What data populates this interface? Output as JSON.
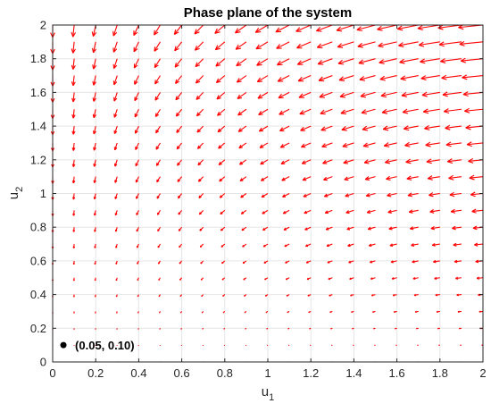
{
  "chart_data": {
    "type": "quiver",
    "title": "Phase plane of the system",
    "xlabel": "u",
    "xlabel_subscript": "1",
    "ylabel": "u",
    "ylabel_subscript": "2",
    "xlim": [
      0,
      2
    ],
    "ylim": [
      0,
      2
    ],
    "x_ticks": [
      "0",
      "0.2",
      "0.4",
      "0.6",
      "0.8",
      "1",
      "1.2",
      "1.4",
      "1.6",
      "1.8",
      "2"
    ],
    "y_ticks": [
      "0",
      "0.2",
      "0.4",
      "0.6",
      "0.8",
      "1",
      "1.2",
      "1.4",
      "1.6",
      "1.8",
      "2"
    ],
    "grid": true,
    "arrow_color": "#ff0000",
    "grid_spacing": 0.1,
    "vector_field": "du1/dt ≈ -u1·u2, du2/dt ≈ -u2·(1 - 0.4·u1); arrows on a 21×21 grid over [0,2]×[0,2]",
    "marked_point": {
      "x": 0.05,
      "y": 0.1,
      "label": "(0.05, 0.10)"
    }
  },
  "colors": {
    "arrow": "#ff0000",
    "grid": "#e6e6e6",
    "axes": "#262626",
    "point": "#000000"
  }
}
